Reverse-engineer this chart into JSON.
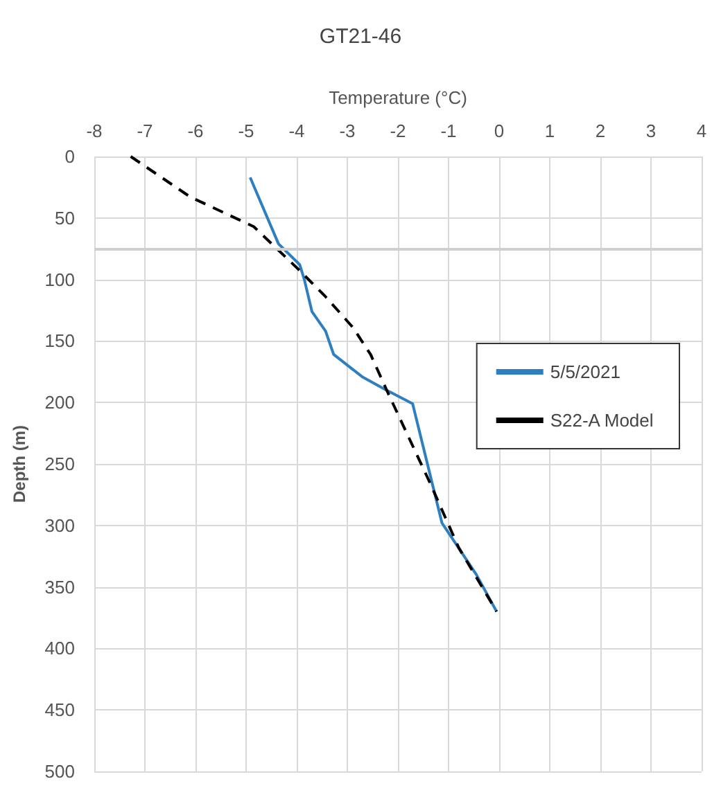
{
  "chart_data": {
    "type": "line",
    "title": "GT21-46",
    "xlabel": "Temperature (°C)",
    "ylabel": "Depth (m)",
    "xlim": [
      -8,
      4
    ],
    "xticks": [
      -8,
      -7,
      -6,
      -5,
      -4,
      -3,
      -2,
      -1,
      0,
      1,
      2,
      3,
      4
    ],
    "ylim": [
      500,
      0
    ],
    "yticks": [
      0,
      50,
      100,
      150,
      200,
      250,
      300,
      350,
      400,
      450,
      500
    ],
    "grid": true,
    "legend": "right",
    "marker": "none",
    "ref_lines": [
      {
        "axis": "y",
        "value": 75,
        "color": "#d0d0d0"
      }
    ],
    "series": [
      {
        "name": "5/5/2021",
        "color": "#2e7fc0",
        "line_style": "solid",
        "x": [
          -4.92,
          -4.36,
          -3.94,
          -3.85,
          -3.7,
          -3.43,
          -3.27,
          -2.71,
          -2.27,
          -1.71,
          -1.13,
          -0.45,
          -0.05
        ],
        "values": [
          17,
          71,
          88,
          100,
          126,
          142,
          161,
          179,
          189,
          201,
          298,
          340,
          370
        ]
      },
      {
        "name": "S22-A Model",
        "color": "#000000",
        "line_style": "dashed",
        "x": [
          -7.28,
          -6.1,
          -4.85,
          -3.96,
          -3.43,
          -2.89,
          -2.54,
          -2.2,
          -1.36,
          -0.8,
          -0.05
        ],
        "values": [
          0,
          33,
          57,
          92,
          114,
          139,
          161,
          192,
          266,
          318,
          370
        ]
      }
    ]
  }
}
